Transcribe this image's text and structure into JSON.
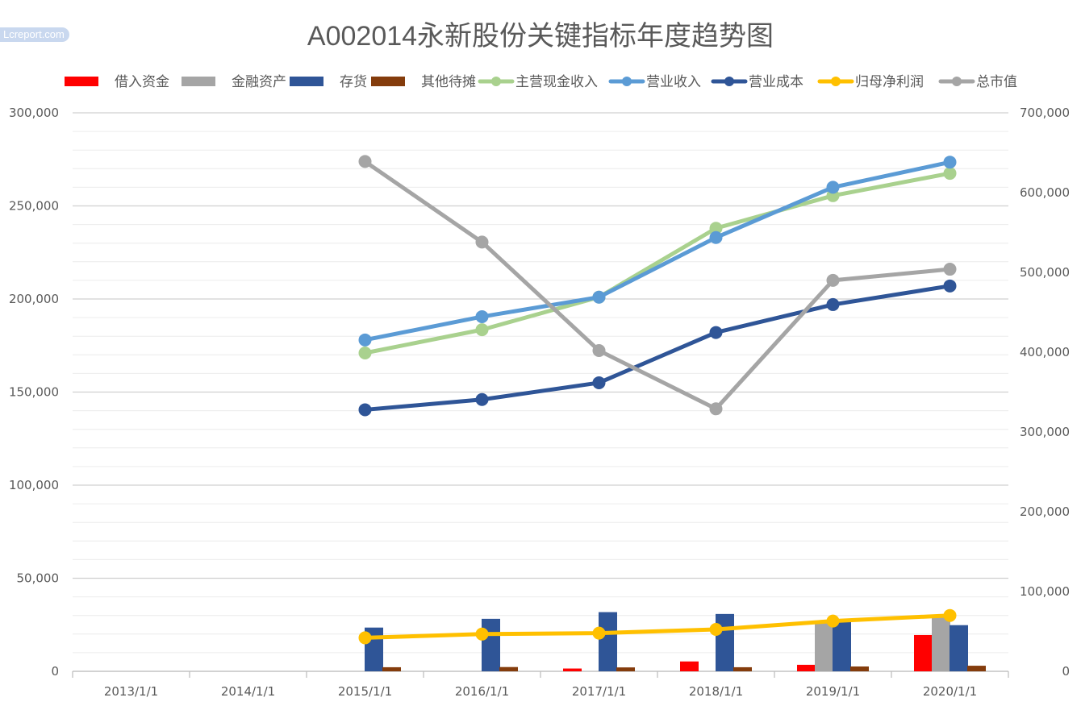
{
  "watermark": "Lcreport.com",
  "chart_data": {
    "type": "bar",
    "title": "A002014永新股份关键指标年度趋势图",
    "categories": [
      "2013/1/1",
      "2014/1/1",
      "2015/1/1",
      "2016/1/1",
      "2017/1/1",
      "2018/1/1",
      "2019/1/1",
      "2020/1/1"
    ],
    "y_left": {
      "min": 0,
      "max": 300000,
      "step": 50000,
      "ticks": [
        "0",
        "50,000",
        "100,000",
        "150,000",
        "200,000",
        "250,000",
        "300,000"
      ]
    },
    "y_right": {
      "min": 0,
      "max": 700000,
      "step": 100000,
      "ticks": [
        "0",
        "100,000",
        "200,000",
        "300,000",
        "400,000",
        "500,000",
        "600,000",
        "700,000"
      ]
    },
    "grid": true,
    "legend_position": "top",
    "series": [
      {
        "name": "借入资金",
        "kind": "bar",
        "axis": "left",
        "color": "#ff0000",
        "values": [
          null,
          null,
          null,
          null,
          1500,
          5300,
          3500,
          19500
        ]
      },
      {
        "name": "金融资产",
        "kind": "bar",
        "axis": "left",
        "color": "#a5a5a5",
        "values": [
          null,
          null,
          null,
          null,
          null,
          null,
          27000,
          30000
        ]
      },
      {
        "name": "存货",
        "kind": "bar",
        "axis": "left",
        "color": "#2f5597",
        "values": [
          null,
          null,
          23500,
          28200,
          31800,
          30800,
          28000,
          24800
        ]
      },
      {
        "name": "其他待摊",
        "kind": "bar",
        "axis": "left",
        "color": "#843c0c",
        "values": [
          null,
          null,
          2200,
          2300,
          2100,
          2200,
          2600,
          3000
        ]
      },
      {
        "name": "主营现金收入",
        "kind": "line",
        "axis": "left",
        "color": "#a9d18e",
        "values": [
          null,
          null,
          171000,
          183500,
          201000,
          238000,
          255500,
          267500
        ]
      },
      {
        "name": "营业收入",
        "kind": "line",
        "axis": "left",
        "color": "#5b9bd5",
        "values": [
          null,
          null,
          178000,
          190500,
          201000,
          233000,
          260000,
          273500
        ]
      },
      {
        "name": "营业成本",
        "kind": "line",
        "axis": "left",
        "color": "#2f5597",
        "values": [
          null,
          null,
          140500,
          146000,
          155000,
          182000,
          197000,
          207000
        ]
      },
      {
        "name": "归母净利润",
        "kind": "line",
        "axis": "left",
        "color": "#ffc000",
        "values": [
          null,
          null,
          18000,
          20000,
          20500,
          22500,
          27000,
          30000
        ]
      },
      {
        "name": "总市值",
        "kind": "line",
        "axis": "right",
        "color": "#a5a5a5",
        "values": [
          null,
          null,
          639000,
          538000,
          402000,
          329000,
          490000,
          504000
        ]
      }
    ]
  }
}
